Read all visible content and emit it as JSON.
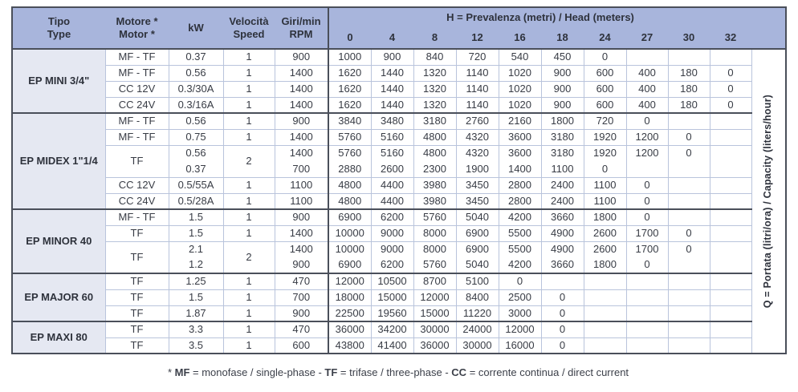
{
  "table": {
    "columns": {
      "tipo": {
        "l1": "Tipo",
        "l2": "Type"
      },
      "motore": {
        "l1": "Motore *",
        "l2": "Motor *"
      },
      "kw": {
        "l1": "kW"
      },
      "speed": {
        "l1": "Velocità",
        "l2": "Speed"
      },
      "rpm": {
        "l1": "Giri/min",
        "l2": "RPM"
      }
    },
    "h_title": {
      "bold": "H",
      "rest": " = Prevalenza (metri) / Head (meters)"
    },
    "h_values": [
      "0",
      "4",
      "8",
      "12",
      "16",
      "18",
      "24",
      "27",
      "30",
      "32"
    ],
    "q_label": {
      "bold": "Q",
      "rest": " = Portata (litri/ora) / Capacity (liters/hour)"
    },
    "sections": [
      {
        "name": "EP MINI 3/4\"",
        "rows": [
          {
            "motor": "MF - TF",
            "kw": "0.37",
            "speed": "1",
            "rpm": "900",
            "q": [
              "1000",
              "900",
              "840",
              "720",
              "540",
              "450",
              "0",
              "",
              "",
              ""
            ]
          },
          {
            "motor": "MF - TF",
            "kw": "0.56",
            "speed": "1",
            "rpm": "1400",
            "q": [
              "1620",
              "1440",
              "1320",
              "1140",
              "1020",
              "900",
              "600",
              "400",
              "180",
              "0"
            ]
          },
          {
            "motor": "CC 12V",
            "kw": "0.3/30A",
            "speed": "1",
            "rpm": "1400",
            "q": [
              "1620",
              "1440",
              "1320",
              "1140",
              "1020",
              "900",
              "600",
              "400",
              "180",
              "0"
            ]
          },
          {
            "motor": "CC 24V",
            "kw": "0.3/16A",
            "speed": "1",
            "rpm": "1400",
            "q": [
              "1620",
              "1440",
              "1320",
              "1140",
              "1020",
              "900",
              "600",
              "400",
              "180",
              "0"
            ]
          }
        ]
      },
      {
        "name": "EP MIDEX 1\"1/4",
        "rows": [
          {
            "motor": "MF - TF",
            "kw": "0.56",
            "speed": "1",
            "rpm": "900",
            "q": [
              "3840",
              "3480",
              "3180",
              "2760",
              "2160",
              "1800",
              "720",
              "0",
              "",
              ""
            ]
          },
          {
            "motor": "MF - TF",
            "kw": "0.75",
            "speed": "1",
            "rpm": "1400",
            "q": [
              "5760",
              "5160",
              "4800",
              "4320",
              "3600",
              "3180",
              "1920",
              "1200",
              "0",
              ""
            ]
          },
          {
            "motor": "TF",
            "kw": "0.56",
            "speed": "2",
            "span": 2,
            "rpm": "1400",
            "q": [
              "5760",
              "5160",
              "4800",
              "4320",
              "3600",
              "3180",
              "1920",
              "1200",
              "0",
              ""
            ]
          },
          {
            "cont": true,
            "kw": "0.37",
            "rpm": "700",
            "q": [
              "2880",
              "2600",
              "2300",
              "1900",
              "1400",
              "1100",
              "0",
              "",
              "",
              ""
            ]
          },
          {
            "motor": "CC 12V",
            "kw": "0.5/55A",
            "speed": "1",
            "rpm": "1100",
            "q": [
              "4800",
              "4400",
              "3980",
              "3450",
              "2800",
              "2400",
              "1100",
              "0",
              "",
              ""
            ]
          },
          {
            "motor": "CC 24V",
            "kw": "0.5/28A",
            "speed": "1",
            "rpm": "1100",
            "q": [
              "4800",
              "4400",
              "3980",
              "3450",
              "2800",
              "2400",
              "1100",
              "0",
              "",
              ""
            ]
          }
        ]
      },
      {
        "name": "EP MINOR 40",
        "rows": [
          {
            "motor": "MF - TF",
            "kw": "1.5",
            "speed": "1",
            "rpm": "900",
            "q": [
              "6900",
              "6200",
              "5760",
              "5040",
              "4200",
              "3660",
              "1800",
              "0",
              "",
              ""
            ]
          },
          {
            "motor": "TF",
            "kw": "1.5",
            "speed": "1",
            "rpm": "1400",
            "q": [
              "10000",
              "9000",
              "8000",
              "6900",
              "5500",
              "4900",
              "2600",
              "1700",
              "0",
              ""
            ]
          },
          {
            "motor": "TF",
            "kw": "2.1",
            "speed": "2",
            "span": 2,
            "rpm": "1400",
            "q": [
              "10000",
              "9000",
              "8000",
              "6900",
              "5500",
              "4900",
              "2600",
              "1700",
              "0",
              ""
            ]
          },
          {
            "cont": true,
            "kw": "1.2",
            "rpm": "900",
            "q": [
              "6900",
              "6200",
              "5760",
              "5040",
              "4200",
              "3660",
              "1800",
              "0",
              "",
              ""
            ]
          }
        ]
      },
      {
        "name": "EP MAJOR 60",
        "rows": [
          {
            "motor": "TF",
            "kw": "1.25",
            "speed": "1",
            "rpm": "470",
            "q": [
              "12000",
              "10500",
              "8700",
              "5100",
              "0",
              "",
              "",
              "",
              "",
              ""
            ]
          },
          {
            "motor": "TF",
            "kw": "1.5",
            "speed": "1",
            "rpm": "700",
            "q": [
              "18000",
              "15000",
              "12000",
              "8400",
              "2500",
              "0",
              "",
              "",
              "",
              ""
            ]
          },
          {
            "motor": "TF",
            "kw": "1.87",
            "speed": "1",
            "rpm": "900",
            "q": [
              "22500",
              "19560",
              "15000",
              "11220",
              "3000",
              "0",
              "",
              "",
              "",
              ""
            ]
          }
        ]
      },
      {
        "name": "EP MAXI 80",
        "rows": [
          {
            "motor": "TF",
            "kw": "3.3",
            "speed": "1",
            "rpm": "470",
            "q": [
              "36000",
              "34200",
              "30000",
              "24000",
              "12000",
              "0",
              "",
              "",
              "",
              ""
            ]
          },
          {
            "motor": "TF",
            "kw": "3.5",
            "speed": "1",
            "rpm": "600",
            "q": [
              "43800",
              "41400",
              "36000",
              "30000",
              "16000",
              "0",
              "",
              "",
              "",
              ""
            ]
          }
        ]
      }
    ]
  },
  "footnote": {
    "s1": "* ",
    "s2": "MF",
    "s3": " = monofase / single-phase - ",
    "s4": "TF",
    "s5": " = trifase / three-phase - ",
    "s6": "CC",
    "s7": " = corrente continua / direct current"
  },
  "colors": {
    "header_bg": "#a8b5dc",
    "tipo_bg": "#e5e8f2",
    "border_light": "#b9c4dc",
    "border_dark": "#4a4f5a"
  }
}
